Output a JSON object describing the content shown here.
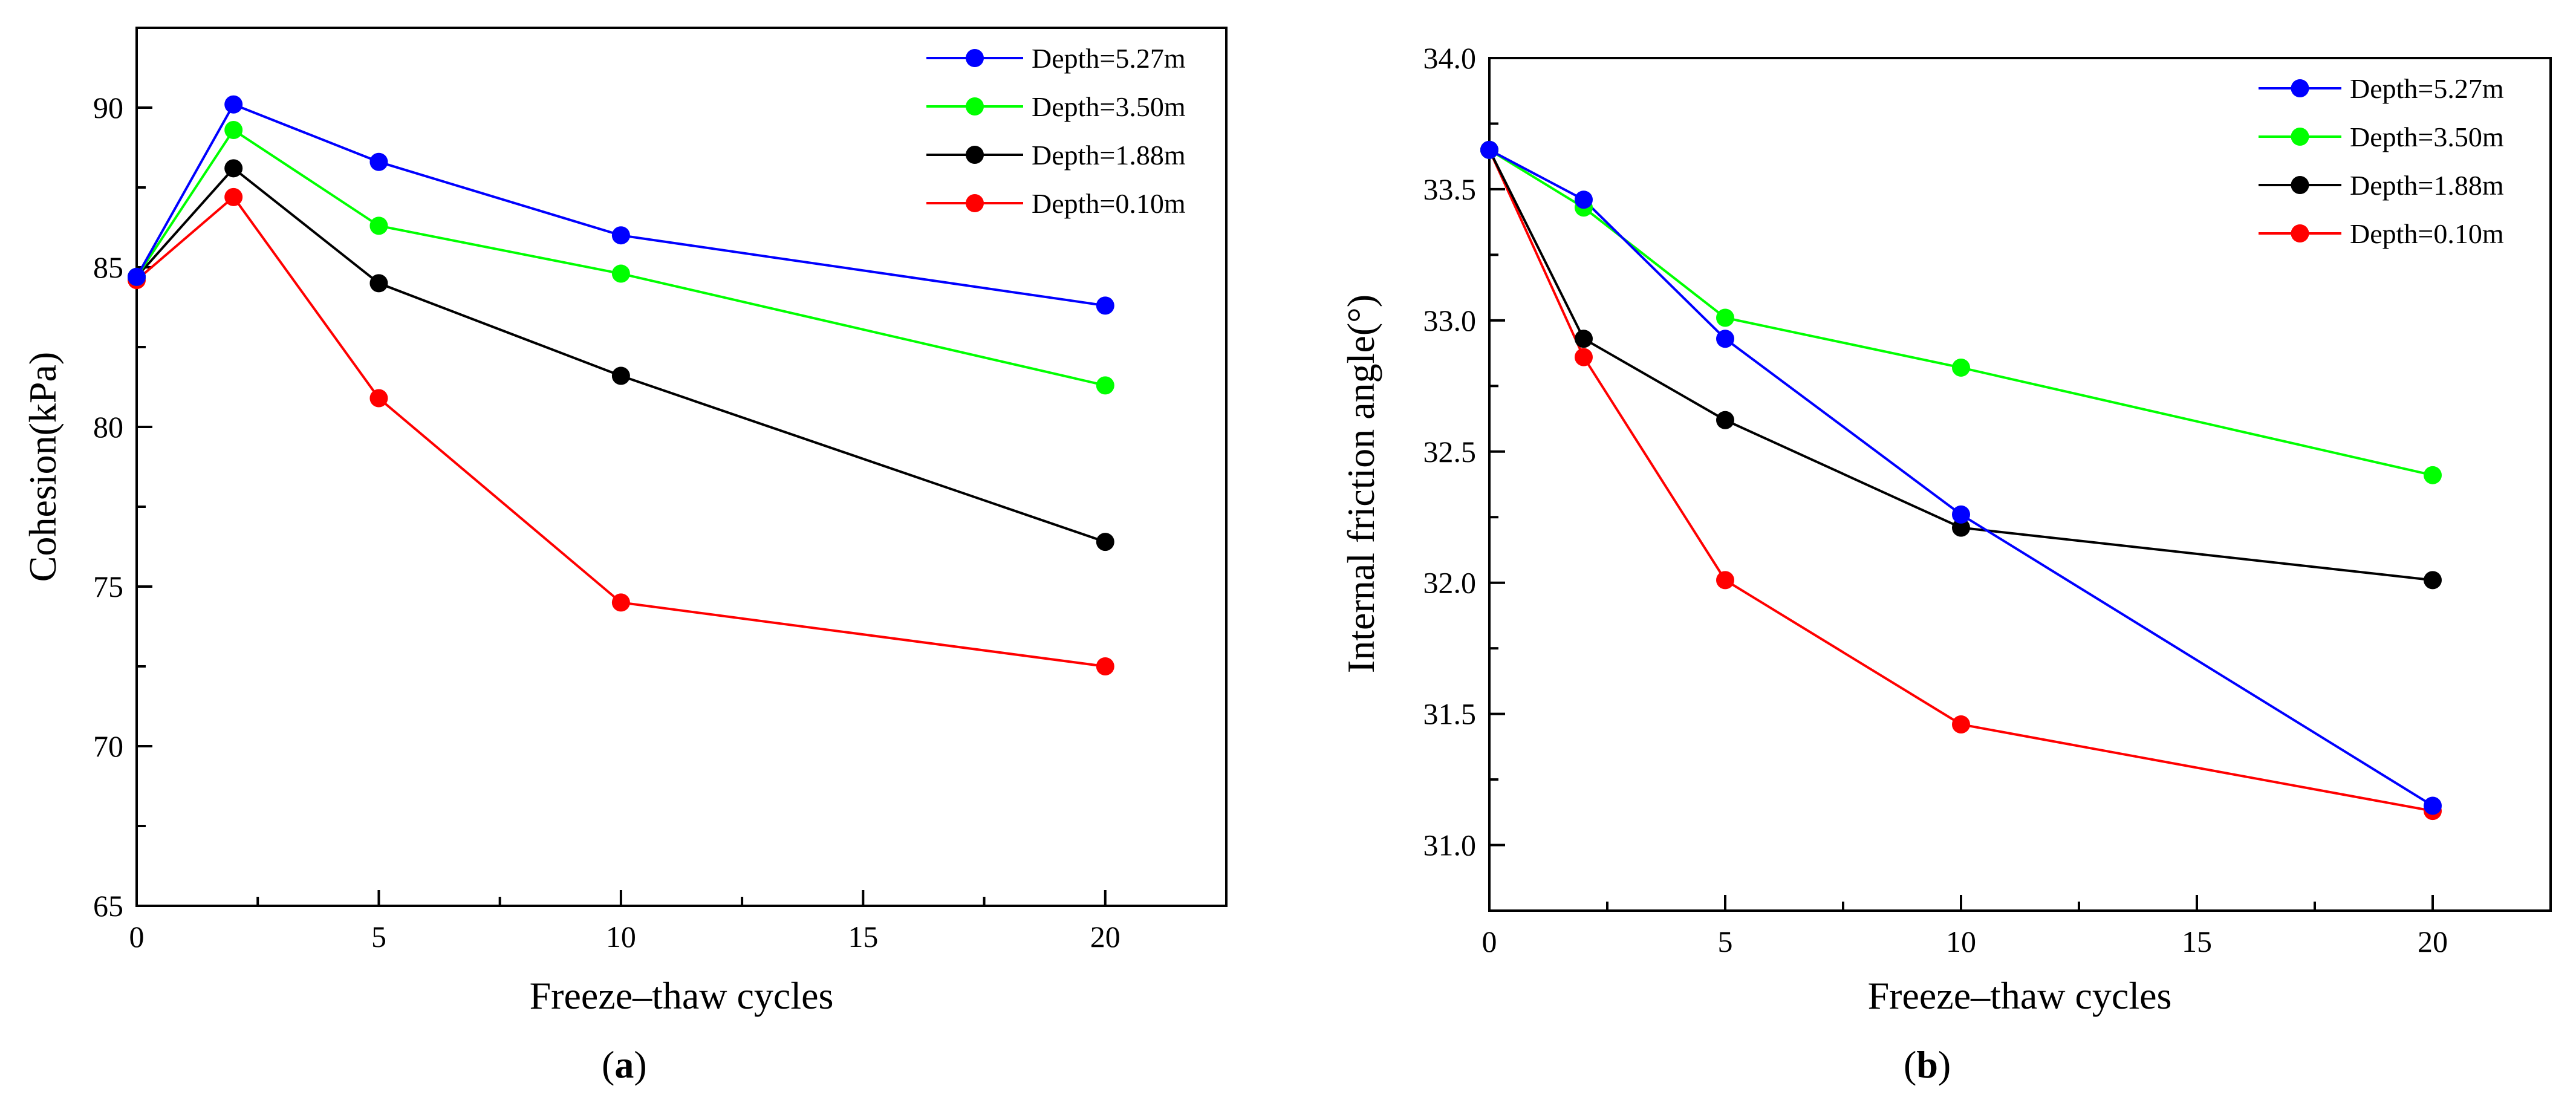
{
  "chart_data": [
    {
      "type": "line",
      "panel": "a",
      "caption_open": "(",
      "caption_letter": "a",
      "caption_close": ")",
      "xlabel": "Freeze–thaw cycles",
      "ylabel": "Cohesion(kPa)",
      "xlim": [
        0,
        22.5
      ],
      "ylim": [
        65,
        92.5
      ],
      "xticks": [
        0,
        5,
        10,
        15,
        20
      ],
      "xtick_labels": [
        "0",
        "5",
        "10",
        "15",
        "20"
      ],
      "yticks": [
        65,
        70,
        75,
        80,
        85,
        90
      ],
      "ytick_labels": [
        "65",
        "70",
        "75",
        "80",
        "85",
        "90"
      ],
      "grid": false,
      "legend_position": "top-right",
      "x": [
        0,
        2,
        5,
        10,
        20
      ],
      "series": [
        {
          "name": "Depth=5.27m",
          "color": "#0000ff",
          "values": [
            84.7,
            90.1,
            88.3,
            86.0,
            83.8
          ]
        },
        {
          "name": "Depth=3.50m",
          "color": "#00ff00",
          "values": [
            84.7,
            89.3,
            86.3,
            84.8,
            81.3
          ]
        },
        {
          "name": "Depth=1.88m",
          "color": "#000000",
          "values": [
            84.7,
            88.1,
            84.5,
            81.6,
            76.4
          ]
        },
        {
          "name": "Depth=0.10m",
          "color": "#ff0000",
          "values": [
            84.6,
            87.2,
            80.9,
            74.5,
            72.5
          ]
        }
      ]
    },
    {
      "type": "line",
      "panel": "b",
      "caption_open": "(",
      "caption_letter": "b",
      "caption_close": ")",
      "xlabel": "Freeze–thaw cycles",
      "ylabel": "Internal friction angle(°)",
      "xlim": [
        0,
        22.5
      ],
      "ylim": [
        30.75,
        34.0
      ],
      "xticks": [
        0,
        5,
        10,
        15,
        20
      ],
      "xtick_labels": [
        "0",
        "5",
        "10",
        "15",
        "20"
      ],
      "yticks": [
        31.0,
        31.5,
        32.0,
        32.5,
        33.0,
        33.5,
        34.0
      ],
      "ytick_labels": [
        "31.0",
        "31.5",
        "32.0",
        "32.5",
        "33.0",
        "33.5",
        "34.0"
      ],
      "grid": false,
      "legend_position": "top-right",
      "x": [
        0,
        2,
        5,
        10,
        20
      ],
      "series": [
        {
          "name": "Depth=5.27m",
          "color": "#0000ff",
          "values": [
            33.65,
            33.46,
            32.93,
            32.26,
            31.15
          ]
        },
        {
          "name": "Depth=3.50m",
          "color": "#00ff00",
          "values": [
            33.65,
            33.43,
            33.01,
            32.82,
            32.41
          ]
        },
        {
          "name": "Depth=1.88m",
          "color": "#000000",
          "values": [
            33.65,
            32.93,
            32.62,
            32.21,
            32.01
          ]
        },
        {
          "name": "Depth=0.10m",
          "color": "#ff0000",
          "values": [
            33.65,
            32.86,
            32.01,
            31.46,
            31.13
          ]
        }
      ]
    }
  ]
}
